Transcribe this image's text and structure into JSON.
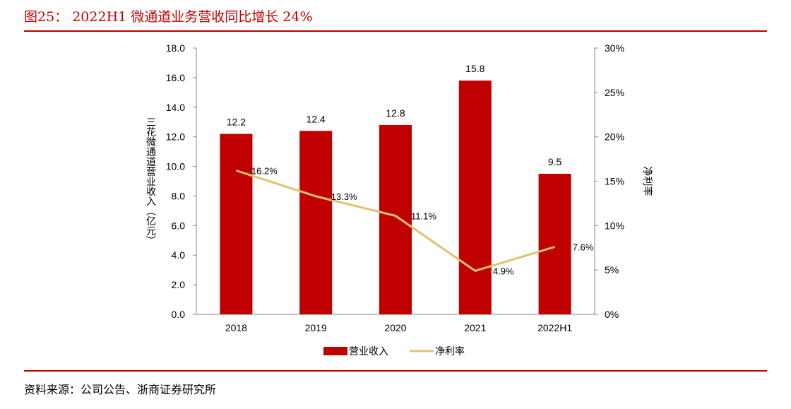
{
  "header": {
    "title": "图25：  2022H1 微通道业务营收同比增长 24%"
  },
  "footer": {
    "source": "资料来源：公司公告、浙商证券研究所"
  },
  "chart_data": {
    "type": "bar",
    "categories": [
      "2018",
      "2019",
      "2020",
      "2021",
      "2022H1"
    ],
    "series": [
      {
        "name": "营业收入",
        "type": "bar",
        "axis": "left",
        "color": "#c00000",
        "values": [
          12.2,
          12.4,
          12.8,
          15.8,
          9.5
        ],
        "labels": [
          "12.2",
          "12.4",
          "12.8",
          "15.8",
          "9.5"
        ]
      },
      {
        "name": "净利率",
        "type": "line",
        "axis": "right",
        "color": "#e2c172",
        "values": [
          16.2,
          13.3,
          11.1,
          4.9,
          7.6
        ],
        "labels": [
          "16.2%",
          "13.3%",
          "11.1%",
          "4.9%",
          "7.6%"
        ]
      }
    ],
    "y_left": {
      "label": "三花微通道营业收入（亿元）",
      "ylim": [
        0,
        18
      ],
      "ticks": [
        "0.0",
        "2.0",
        "4.0",
        "6.0",
        "8.0",
        "10.0",
        "12.0",
        "14.0",
        "16.0",
        "18.0"
      ]
    },
    "y_right": {
      "label": "净利率",
      "ylim": [
        0,
        30
      ],
      "ticks": [
        "0%",
        "5%",
        "10%",
        "15%",
        "20%",
        "25%",
        "30%"
      ]
    },
    "legend": {
      "position": "bottom",
      "items": [
        "营业收入",
        "净利率"
      ]
    },
    "grid": false
  }
}
